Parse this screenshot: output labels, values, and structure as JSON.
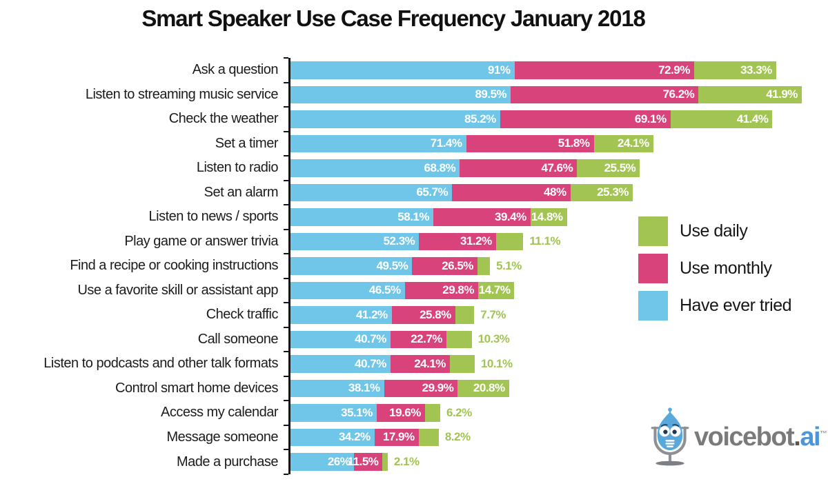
{
  "title": "Smart Speaker Use Case Frequency January 2018",
  "colors": {
    "daily_green": "#A2C452",
    "monthly_pink": "#D8437C",
    "tried_blue": "#6FC6E8",
    "axis_black": "#151515",
    "value_label_inside": "#FFFFFF"
  },
  "chart_data": {
    "type": "bar",
    "orientation": "horizontal-stacked",
    "unit": "%",
    "title": "Smart Speaker Use Case Frequency January 2018",
    "categories": [
      "Ask a question",
      "Listen to streaming music service",
      "Check the weather",
      "Set a timer",
      "Listen to radio",
      "Set an alarm",
      "Listen to news / sports",
      "Play game or answer trivia",
      "Find a recipe or cooking instructions",
      "Use a favorite skill or assistant app",
      "Check traffic",
      "Call someone",
      "Listen to podcasts and other talk formats",
      "Control smart home devices",
      "Access my calendar",
      "Message someone",
      "Made a purchase"
    ],
    "series": [
      {
        "name": "Have ever tried",
        "color": "#6FC6E8",
        "values": [
          91,
          89.5,
          85.2,
          71.4,
          68.8,
          65.7,
          58.1,
          52.3,
          49.5,
          46.5,
          41.2,
          40.7,
          40.7,
          38.1,
          35.1,
          34.2,
          26
        ]
      },
      {
        "name": "Use monthly",
        "color": "#D8437C",
        "values": [
          72.9,
          76.2,
          69.1,
          51.8,
          47.6,
          48,
          39.4,
          31.2,
          26.5,
          29.8,
          25.8,
          22.7,
          24.1,
          29.9,
          19.6,
          17.9,
          11.5
        ]
      },
      {
        "name": "Use daily",
        "color": "#A2C452",
        "values": [
          33.3,
          41.9,
          41.4,
          24.1,
          25.5,
          25.3,
          14.8,
          11.1,
          5.1,
          14.7,
          7.7,
          10.3,
          10.1,
          20.8,
          6.2,
          8.2,
          2.1
        ]
      }
    ],
    "segment_order_left_to_right": [
      "Have ever tried",
      "Use monthly",
      "Use daily"
    ],
    "x_axis": {
      "scale_max_units": 210,
      "gridlines": false,
      "tick_labels": "none",
      "ticks_at_category_boundaries": true
    },
    "value_label_rule": "white label inside each segment at its right end; Use daily label shown in green outside bar when value < 13",
    "legend_position": "middle-right"
  },
  "legend": {
    "items": [
      {
        "label": "Use daily",
        "color": "#A2C452"
      },
      {
        "label": "Use monthly",
        "color": "#D8437C"
      },
      {
        "label": "Have ever tried",
        "color": "#6FC6E8"
      }
    ]
  },
  "logo": {
    "text_main": "voicebot",
    "text_dot": ".",
    "text_suffix": "ai",
    "trademark": "TM"
  }
}
